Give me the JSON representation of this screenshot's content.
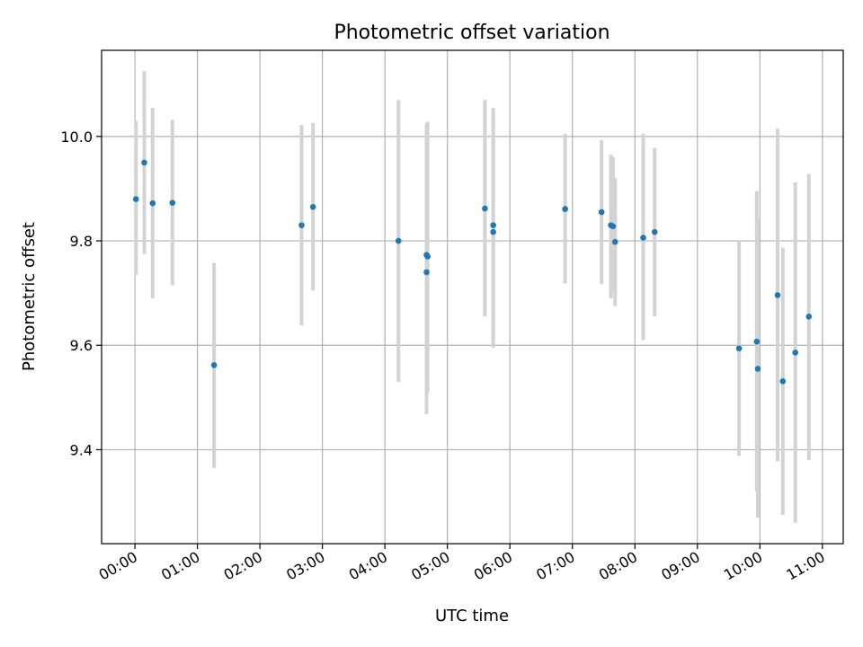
{
  "chart_data": {
    "type": "scatter",
    "title": "Photometric offset variation",
    "xlabel": "UTC time",
    "ylabel": "Photometric offset",
    "xlim": [
      "-00:32",
      "11:20"
    ],
    "ylim": [
      9.22,
      10.165
    ],
    "grid": true,
    "x_ticks": [
      "00:00",
      "01:00",
      "02:00",
      "03:00",
      "04:00",
      "05:00",
      "06:00",
      "07:00",
      "08:00",
      "09:00",
      "10:00",
      "11:00"
    ],
    "y_ticks": [
      "9.4",
      "9.6",
      "9.8",
      "10.0"
    ],
    "marker_color": "#1f77b4",
    "errorbar_color": "#d3d3d3",
    "points": [
      {
        "x": "00:01",
        "y": 9.88,
        "ylow": 9.735,
        "yhigh": 10.03
      },
      {
        "x": "00:09",
        "y": 9.95,
        "ylow": 9.775,
        "yhigh": 10.125
      },
      {
        "x": "00:17",
        "y": 9.872,
        "ylow": 9.69,
        "yhigh": 10.055
      },
      {
        "x": "00:36",
        "y": 9.873,
        "ylow": 9.715,
        "yhigh": 10.032
      },
      {
        "x": "01:16",
        "y": 9.562,
        "ylow": 9.365,
        "yhigh": 9.758
      },
      {
        "x": "02:40",
        "y": 9.83,
        "ylow": 9.638,
        "yhigh": 10.022
      },
      {
        "x": "02:51",
        "y": 9.865,
        "ylow": 9.705,
        "yhigh": 10.026
      },
      {
        "x": "04:13",
        "y": 9.8,
        "ylow": 9.53,
        "yhigh": 10.07
      },
      {
        "x": "04:40",
        "y": 9.773,
        "ylow": 9.525,
        "yhigh": 10.025
      },
      {
        "x": "04:41",
        "y": 9.77,
        "ylow": 9.51,
        "yhigh": 10.028
      },
      {
        "x": "04:40",
        "y": 9.74,
        "ylow": 9.468,
        "yhigh": 10.01
      },
      {
        "x": "05:36",
        "y": 9.862,
        "ylow": 9.655,
        "yhigh": 10.07
      },
      {
        "x": "05:44",
        "y": 9.83,
        "ylow": 9.61,
        "yhigh": 10.055
      },
      {
        "x": "05:44",
        "y": 9.817,
        "ylow": 9.595,
        "yhigh": 10.04
      },
      {
        "x": "06:53",
        "y": 9.861,
        "ylow": 9.718,
        "yhigh": 10.005
      },
      {
        "x": "07:28",
        "y": 9.855,
        "ylow": 9.717,
        "yhigh": 9.993
      },
      {
        "x": "07:37",
        "y": 9.83,
        "ylow": 9.69,
        "yhigh": 9.965
      },
      {
        "x": "07:39",
        "y": 9.828,
        "ylow": 9.7,
        "yhigh": 9.96
      },
      {
        "x": "07:41",
        "y": 9.798,
        "ylow": 9.675,
        "yhigh": 9.92
      },
      {
        "x": "08:08",
        "y": 9.806,
        "ylow": 9.61,
        "yhigh": 10.005
      },
      {
        "x": "08:19",
        "y": 9.817,
        "ylow": 9.655,
        "yhigh": 9.978
      },
      {
        "x": "09:40",
        "y": 9.594,
        "ylow": 9.388,
        "yhigh": 9.8
      },
      {
        "x": "09:57",
        "y": 9.607,
        "ylow": 9.32,
        "yhigh": 9.895
      },
      {
        "x": "09:58",
        "y": 9.555,
        "ylow": 9.27,
        "yhigh": 9.84
      },
      {
        "x": "10:17",
        "y": 9.696,
        "ylow": 9.378,
        "yhigh": 10.015
      },
      {
        "x": "10:22",
        "y": 9.531,
        "ylow": 9.275,
        "yhigh": 9.787
      },
      {
        "x": "10:34",
        "y": 9.586,
        "ylow": 9.26,
        "yhigh": 9.912
      },
      {
        "x": "10:47",
        "y": 9.655,
        "ylow": 9.38,
        "yhigh": 9.928
      }
    ]
  }
}
